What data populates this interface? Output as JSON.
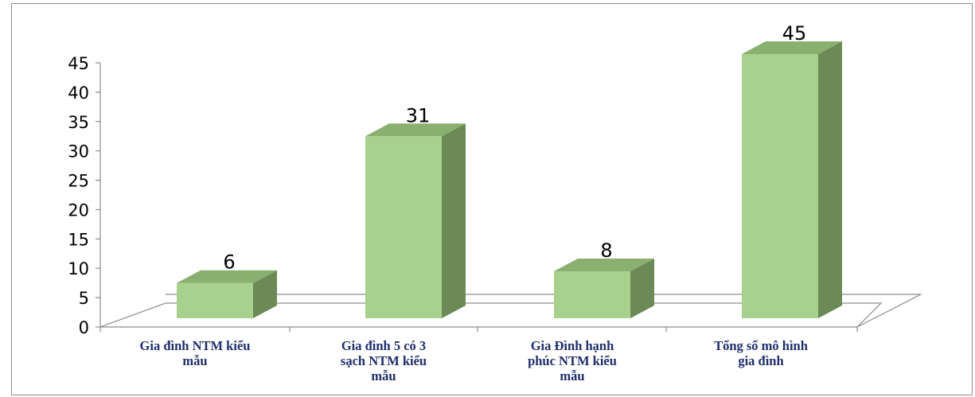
{
  "chart_data": {
    "type": "bar",
    "title": "",
    "xlabel": "",
    "ylabel": "",
    "ylim": [
      0,
      45
    ],
    "yticks": [
      0,
      5,
      10,
      15,
      20,
      25,
      30,
      35,
      40,
      45
    ],
    "grid": false,
    "legend": "none",
    "style": "3d",
    "categories": [
      [
        "Gia đình NTM kiểu",
        "mẫu"
      ],
      [
        "Gia đình 5 có 3",
        "sạch NTM kiểu",
        "mẫu"
      ],
      [
        "Gia Đình hạnh",
        "phúc NTM kiểu",
        "mẫu"
      ],
      [
        "Tổng số mô hình",
        "gia đình"
      ]
    ],
    "values": [
      6,
      31,
      8,
      45
    ],
    "colors": {
      "bar_front": "#a9d18e",
      "bar_top": "#8ab06f",
      "bar_side": "#6b8a56",
      "axis": "#8c8c8c",
      "category_text": "#1f2d6b"
    }
  }
}
